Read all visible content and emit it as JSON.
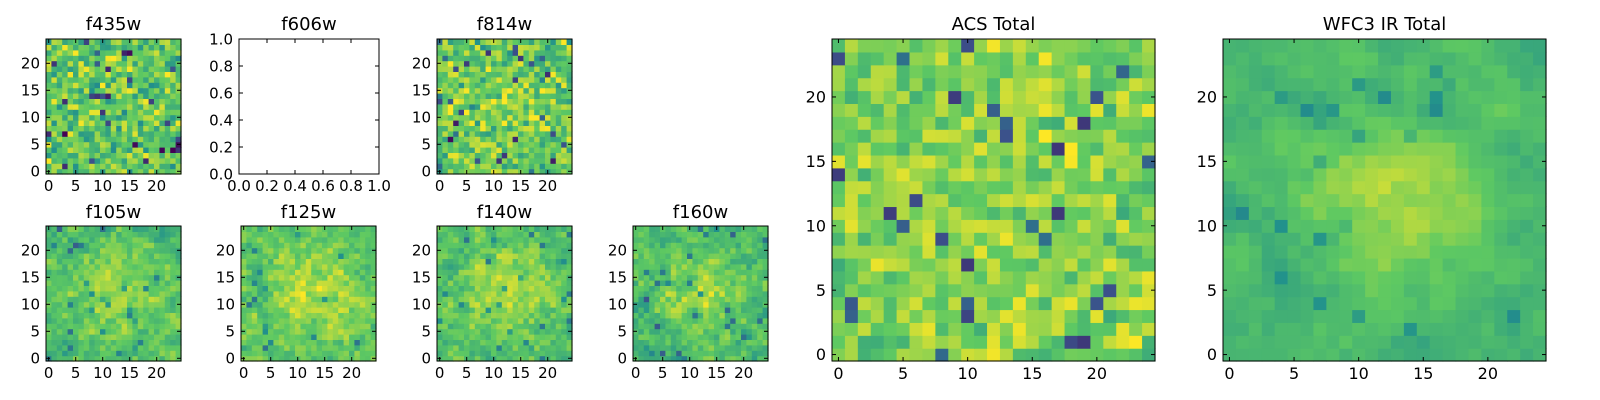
{
  "chart_data": [
    {
      "type": "heatmap",
      "title": "f435w",
      "grid_size": 25,
      "seed": 11,
      "mean": 0.74,
      "noise": 0.18,
      "blob": 0.0,
      "smooth": 0,
      "xlim": [
        0,
        24
      ],
      "ylim": [
        0,
        24
      ],
      "xticks": [
        "0",
        "5",
        "10",
        "15",
        "20"
      ],
      "yticks": [
        "0",
        "5",
        "10",
        "15",
        "20"
      ],
      "colormap": "viridis"
    },
    {
      "type": "heatmap",
      "title": "f606w",
      "empty": true,
      "xlim": [
        0.0,
        1.0
      ],
      "ylim": [
        0.0,
        1.0
      ],
      "xticks": [
        "0.0",
        "0.2",
        "0.4",
        "0.6",
        "0.8",
        "1.0"
      ],
      "yticks": [
        "0.0",
        "0.2",
        "0.4",
        "0.6",
        "0.8",
        "1.0"
      ]
    },
    {
      "type": "heatmap",
      "title": "f814w",
      "grid_size": 25,
      "seed": 23,
      "mean": 0.76,
      "noise": 0.17,
      "blob": 0.05,
      "smooth": 0,
      "xlim": [
        0,
        24
      ],
      "ylim": [
        0,
        24
      ],
      "xticks": [
        "0",
        "5",
        "10",
        "15",
        "20"
      ],
      "yticks": [
        "0",
        "5",
        "10",
        "15",
        "20"
      ],
      "colormap": "viridis"
    },
    {
      "type": "heatmap",
      "title": "f105w",
      "grid_size": 25,
      "seed": 37,
      "mean": 0.7,
      "noise": 0.16,
      "blob": 0.18,
      "smooth": 1,
      "xlim": [
        0,
        24
      ],
      "ylim": [
        0,
        24
      ],
      "xticks": [
        "0",
        "5",
        "10",
        "15",
        "20"
      ],
      "yticks": [
        "0",
        "5",
        "10",
        "15",
        "20"
      ],
      "colormap": "viridis"
    },
    {
      "type": "heatmap",
      "title": "f125w",
      "grid_size": 25,
      "seed": 41,
      "mean": 0.74,
      "noise": 0.16,
      "blob": 0.16,
      "smooth": 1,
      "xlim": [
        0,
        24
      ],
      "ylim": [
        0,
        24
      ],
      "xticks": [
        "0",
        "5",
        "10",
        "15",
        "20"
      ],
      "yticks": [
        "0",
        "5",
        "10",
        "15",
        "20"
      ],
      "colormap": "viridis"
    },
    {
      "type": "heatmap",
      "title": "f140w",
      "grid_size": 25,
      "seed": 53,
      "mean": 0.72,
      "noise": 0.16,
      "blob": 0.16,
      "smooth": 1,
      "xlim": [
        0,
        24
      ],
      "ylim": [
        0,
        24
      ],
      "xticks": [
        "0",
        "5",
        "10",
        "15",
        "20"
      ],
      "yticks": [
        "0",
        "5",
        "10",
        "15",
        "20"
      ],
      "colormap": "viridis"
    },
    {
      "type": "heatmap",
      "title": "f160w",
      "grid_size": 25,
      "seed": 67,
      "mean": 0.68,
      "noise": 0.17,
      "blob": 0.18,
      "smooth": 1,
      "xlim": [
        0,
        24
      ],
      "ylim": [
        0,
        24
      ],
      "xticks": [
        "0",
        "5",
        "10",
        "15",
        "20"
      ],
      "yticks": [
        "0",
        "5",
        "10",
        "15",
        "20"
      ],
      "colormap": "viridis"
    },
    {
      "type": "heatmap",
      "title": "ACS Total",
      "grid_size": 25,
      "seed": 79,
      "mean": 0.8,
      "noise": 0.13,
      "blob": 0.03,
      "smooth": 0,
      "xlim": [
        0,
        24
      ],
      "ylim": [
        0,
        24
      ],
      "xticks": [
        "0",
        "5",
        "10",
        "15",
        "20"
      ],
      "yticks": [
        "0",
        "5",
        "10",
        "15",
        "20"
      ],
      "colormap": "viridis"
    },
    {
      "type": "heatmap",
      "title": "WFC3 IR Total",
      "grid_size": 25,
      "seed": 97,
      "mean": 0.66,
      "noise": 0.12,
      "blob": 0.22,
      "smooth": 2,
      "xlim": [
        0,
        24
      ],
      "ylim": [
        0,
        24
      ],
      "xticks": [
        "0",
        "5",
        "10",
        "15",
        "20"
      ],
      "yticks": [
        "0",
        "5",
        "10",
        "15",
        "20"
      ],
      "colormap": "viridis"
    }
  ]
}
